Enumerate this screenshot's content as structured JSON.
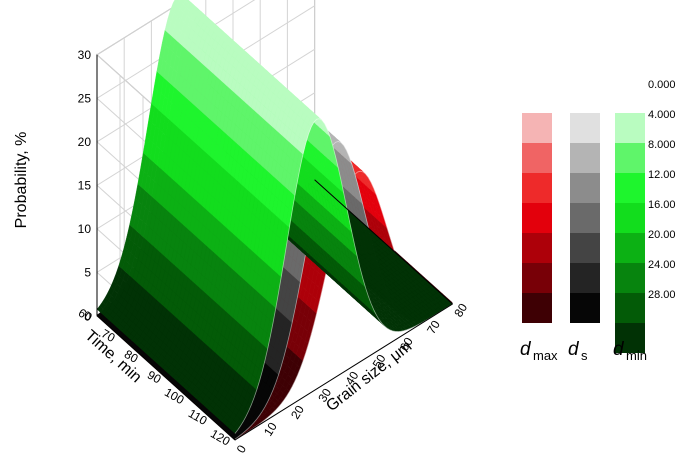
{
  "chart_data": {
    "type": "surface3d",
    "title": "",
    "xlabel": "Grain size, μm",
    "ylabel": "Time, min",
    "zlabel": "Probability, %",
    "x_ticks": [
      "0",
      "10",
      "20",
      "30",
      "40",
      "50",
      "60",
      "70",
      "80"
    ],
    "y_ticks": [
      "60",
      "70",
      "80",
      "90",
      "100",
      "110",
      "120"
    ],
    "z_ticks": [
      "0",
      "5",
      "10",
      "15",
      "20",
      "25",
      "30"
    ],
    "xlim": [
      0,
      80
    ],
    "ylim": [
      60,
      120
    ],
    "zlim": [
      0,
      30
    ],
    "grid": true,
    "series": [
      {
        "name": "d_max",
        "peak_x": 45,
        "peak_z": 22,
        "color": "#e0121e"
      },
      {
        "name": "d_s",
        "peak_x": 37,
        "peak_z": 27,
        "color": "#555555"
      },
      {
        "name": "d_min",
        "peak_x": 30,
        "peak_z": 31,
        "color": "#1ee21e"
      }
    ],
    "color_scale": {
      "values": [
        "0.000",
        "4.000",
        "8.000",
        "12.00",
        "16.00",
        "20.00",
        "24.00",
        "28.00"
      ],
      "legend": [
        {
          "label": "d",
          "sub": "max",
          "colors": [
            "#f5b4b4",
            "#f06464",
            "#ee2a2a",
            "#e3000c",
            "#ad0009",
            "#780007",
            "#3e0004"
          ]
        },
        {
          "label": "d",
          "sub": "s",
          "colors": [
            "#e0e0e0",
            "#b4b4b4",
            "#8c8c8c",
            "#6a6a6a",
            "#444444",
            "#242424",
            "#060606"
          ]
        },
        {
          "label": "d",
          "sub": "min",
          "colors": [
            "#b9fcc0",
            "#5ff56a",
            "#1ef52d",
            "#12dd1d",
            "#0cb114",
            "#07840e",
            "#035b07",
            "#013205"
          ]
        }
      ]
    }
  }
}
